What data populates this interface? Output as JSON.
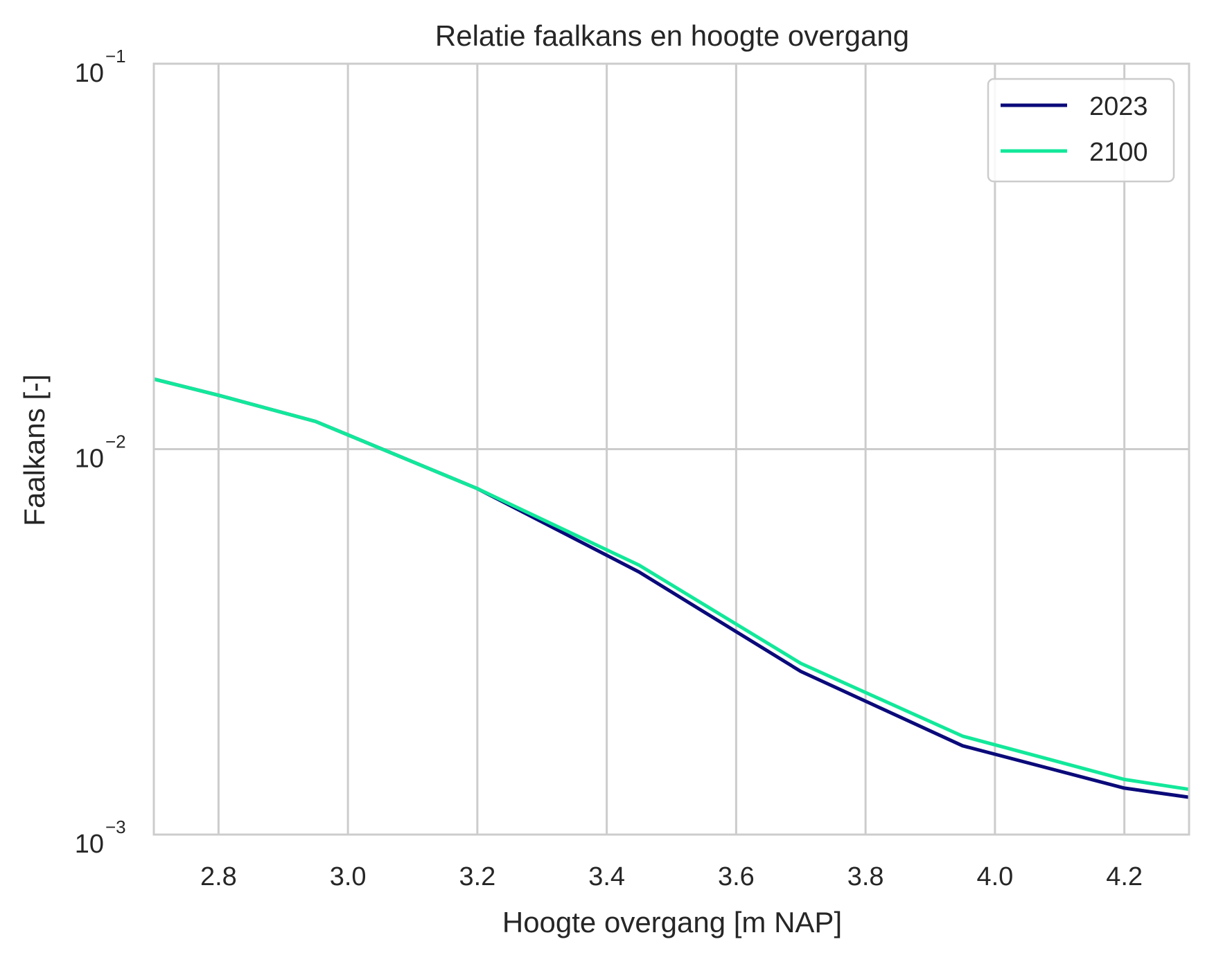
{
  "chart_data": {
    "type": "line",
    "title": "Relatie faalkans en hoogte overgang",
    "xlabel": "Hoogte overgang [m NAP]",
    "ylabel": "Faalkans [-]",
    "xlim": [
      2.7,
      4.3
    ],
    "ylim": [
      0.001,
      0.1
    ],
    "yscale": "log",
    "grid": true,
    "legend_position": "top-right",
    "x_ticks": [
      2.8,
      3.0,
      3.2,
      3.4,
      3.6,
      3.8,
      4.0,
      4.2
    ],
    "x_tick_labels": [
      "2.8",
      "3.0",
      "3.2",
      "3.4",
      "3.6",
      "3.8",
      "4.0",
      "4.2"
    ],
    "y_ticks": [
      {
        "value": 0.1,
        "base": "10",
        "exp": "−1"
      },
      {
        "value": 0.01,
        "base": "10",
        "exp": "−2"
      },
      {
        "value": 0.001,
        "base": "10",
        "exp": "−3"
      }
    ],
    "series": [
      {
        "name": "2023",
        "color": "#0a0a7a",
        "x": [
          2.7,
          2.8,
          2.95,
          3.2,
          3.45,
          3.7,
          3.95,
          4.2,
          4.3
        ],
        "y": [
          0.0152,
          0.0138,
          0.0118,
          0.0079,
          0.0048,
          0.00265,
          0.0017,
          0.00132,
          0.00125
        ]
      },
      {
        "name": "2100",
        "color": "#12e89a",
        "x": [
          2.7,
          2.8,
          2.95,
          3.2,
          3.45,
          3.7,
          3.95,
          4.2,
          4.3
        ],
        "y": [
          0.0152,
          0.0138,
          0.0118,
          0.0079,
          0.005,
          0.00278,
          0.0018,
          0.00139,
          0.00131
        ]
      }
    ]
  }
}
